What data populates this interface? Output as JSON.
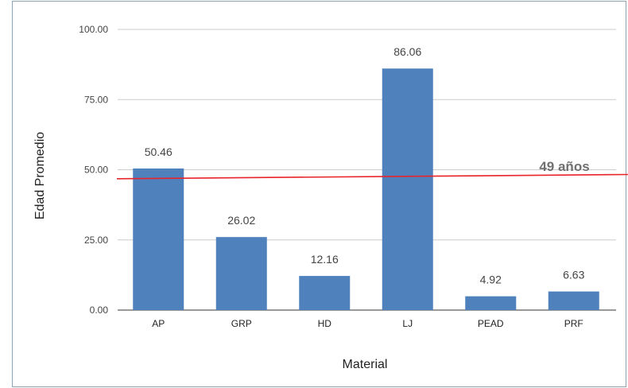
{
  "chart_data": {
    "type": "bar",
    "title": "",
    "xlabel": "Material",
    "ylabel": "Edad Promedio",
    "categories": [
      "AP",
      "GRP",
      "HD",
      "LJ",
      "PEAD",
      "PRF"
    ],
    "values": [
      50.46,
      26.02,
      12.16,
      86.06,
      4.92,
      6.63
    ],
    "value_labels": [
      "50.46",
      "26.02",
      "12.16",
      "86.06",
      "4.92",
      "6.63"
    ],
    "ylim": [
      0,
      100
    ],
    "yticks": [
      "0.00",
      "25.00",
      "50.00",
      "75.00",
      "100.00"
    ],
    "grid": true,
    "bar_color": "#4f81bd",
    "reference_line": {
      "label": "49 años",
      "y_start": 46.8,
      "y_end": 48.3,
      "color": "#e8242a"
    }
  }
}
